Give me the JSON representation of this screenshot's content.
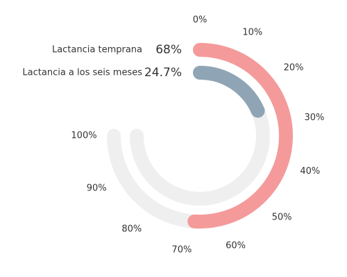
{
  "chart_data": {
    "type": "radial-bar",
    "series": [
      {
        "name": "Lactancia temprana",
        "color": "#f49a9a",
        "values": [
          68
        ],
        "value_labels": [
          "68%"
        ]
      },
      {
        "name": "Lactancia a los seis meses",
        "color": "#8fa5b5",
        "values": [
          24.7
        ],
        "value_labels": [
          "24.7%"
        ]
      }
    ],
    "xlim": [
      0,
      100
    ],
    "xticks": [
      {
        "value": 0,
        "label": "0%"
      },
      {
        "value": 10,
        "label": "10%"
      },
      {
        "value": 20,
        "label": "20%"
      },
      {
        "value": 30,
        "label": "30%"
      },
      {
        "value": 40,
        "label": "40%"
      },
      {
        "value": 50,
        "label": "50%"
      },
      {
        "value": 60,
        "label": "60%"
      },
      {
        "value": 70,
        "label": "70%"
      },
      {
        "value": 80,
        "label": "80%"
      },
      {
        "value": 90,
        "label": "90%"
      },
      {
        "value": 100,
        "label": "100%"
      }
    ]
  }
}
